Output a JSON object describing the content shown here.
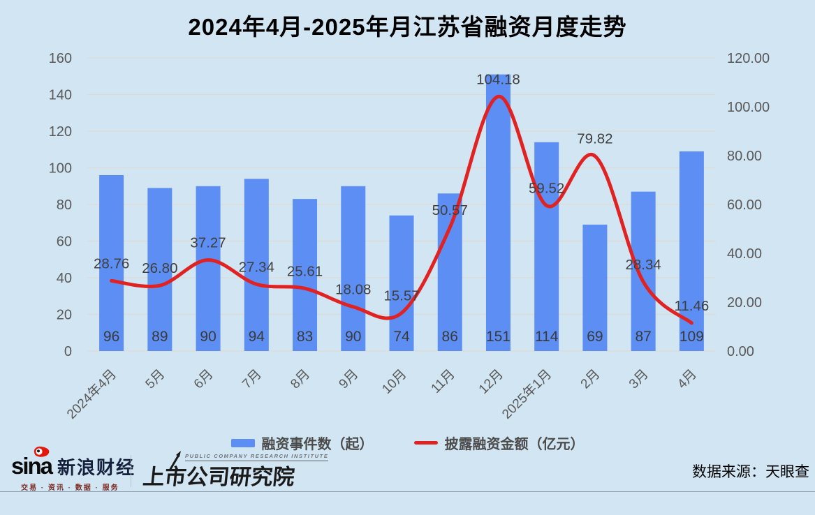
{
  "chart_data": {
    "type": "combo",
    "title": "2024年4月-2025年月江苏省融资月度走势",
    "categories": [
      "2024年4月",
      "5月",
      "6月",
      "7月",
      "8月",
      "9月",
      "10月",
      "11月",
      "12月",
      "2025年1月",
      "2月",
      "3月",
      "4月"
    ],
    "series": [
      {
        "name": "融资事件数（起）",
        "type": "bar",
        "axis": "left",
        "values": [
          96,
          89,
          90,
          94,
          83,
          90,
          74,
          86,
          151,
          114,
          69,
          87,
          109
        ]
      },
      {
        "name": "披露融资金额（亿元）",
        "type": "line",
        "axis": "right",
        "values": [
          28.76,
          26.8,
          37.27,
          27.34,
          25.61,
          18.08,
          15.57,
          50.57,
          104.18,
          59.52,
          79.82,
          28.34,
          11.46
        ]
      }
    ],
    "y_left": {
      "min": 0,
      "max": 160,
      "step": 20,
      "decimals": 0
    },
    "y_right": {
      "min": 0,
      "max": 120,
      "step": 20,
      "decimals": 2
    },
    "grid": true,
    "legend_position": "bottom",
    "colors": {
      "bar": "#5c8ef3",
      "line": "#e02222",
      "background": "#d2e5f2",
      "gridline": "#ded9d3",
      "axis_text": "#595959",
      "data_label": "#3f3f3f"
    }
  },
  "footer": {
    "sina_word": "sina",
    "brand_name": "新浪财经",
    "brand_tagline": "交易 · 资讯 · 数据 · 服务",
    "institute_en": "PUBLIC COMPANY RESEARCH INSTITUTE",
    "institute_cn": "上市公司研究院",
    "source": "数据来源：天眼查"
  },
  "icons": {
    "sina_eye": "red-eye-blob",
    "pcri_arrow": "↗"
  }
}
